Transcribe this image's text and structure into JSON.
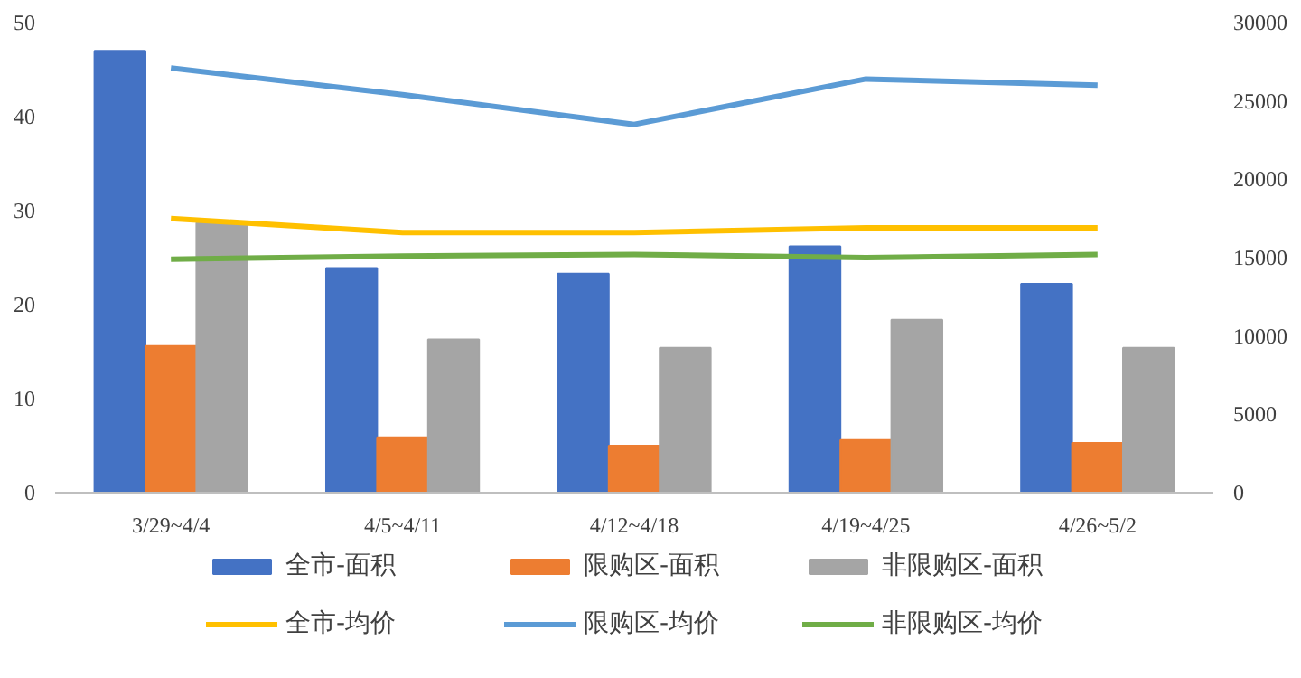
{
  "chart_data": {
    "type": "bar",
    "categories": [
      "3/29~4/4",
      "4/5~4/11",
      "4/12~4/18",
      "4/19~4/25",
      "4/26~5/2"
    ],
    "series": [
      {
        "name": "全市-面积",
        "color": "#4472c4",
        "values": [
          47,
          23.9,
          23.3,
          26.2,
          22.2
        ]
      },
      {
        "name": "限购区-面积",
        "color": "#ed7d31",
        "values": [
          15.6,
          5.9,
          5.0,
          5.6,
          5.3
        ]
      },
      {
        "name": "非限购区-面积",
        "color": "#a5a5a5",
        "values": [
          28.7,
          16.3,
          15.4,
          18.4,
          15.4
        ]
      },
      {
        "name": "全市-均价",
        "type": "line",
        "axis": "y2",
        "color": "#ffc000",
        "values": [
          17500,
          16600,
          16600,
          16900,
          16900
        ]
      },
      {
        "name": "限购区-均价",
        "type": "line",
        "axis": "y2",
        "color": "#5b9bd5",
        "values": [
          27100,
          25400,
          23500,
          26400,
          26000
        ]
      },
      {
        "name": "非限购区-均价",
        "type": "line",
        "axis": "y2",
        "color": "#70ad47",
        "values": [
          14900,
          15100,
          15200,
          15000,
          15200
        ]
      }
    ],
    "ylim": [
      0,
      50
    ],
    "yticks": [
      0,
      10,
      20,
      30,
      40,
      50
    ],
    "y2lim": [
      0,
      30000
    ],
    "y2ticks": [
      0,
      5000,
      10000,
      15000,
      20000,
      25000,
      30000
    ],
    "legend": "bottom"
  }
}
